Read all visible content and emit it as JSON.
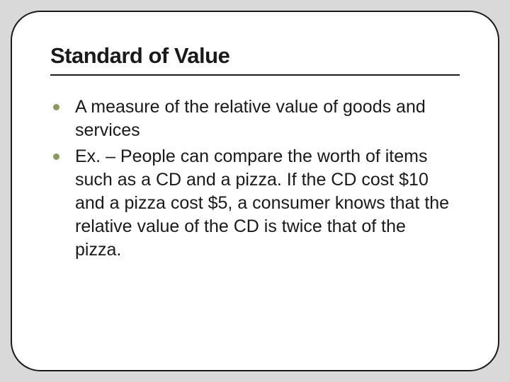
{
  "slide": {
    "title": "Standard of Value",
    "title_fontsize": 31,
    "title_weight": 900,
    "title_color": "#1a1a1a",
    "underline_color": "#1a1a1a",
    "underline_height": 2,
    "bullets": [
      {
        "text": "A measure of the relative value of goods and services"
      },
      {
        "text": "Ex. – People can compare the worth of items such as a CD and a pizza.  If the CD cost $10 and a pizza cost $5, a consumer knows that the relative value of the CD is twice that of the pizza."
      }
    ],
    "bullet_marker_color": "#8a9a5b",
    "bullet_marker_size": 9,
    "body_fontsize": 25,
    "body_color": "#1a1a1a",
    "body_lineheight": 1.32,
    "background_color": "#ffffff",
    "outer_background": "#d9d9d9",
    "frame_border_color": "#1a1a1a",
    "frame_border_width": 2,
    "frame_border_radius": 42,
    "bullet_indent": 22
  }
}
